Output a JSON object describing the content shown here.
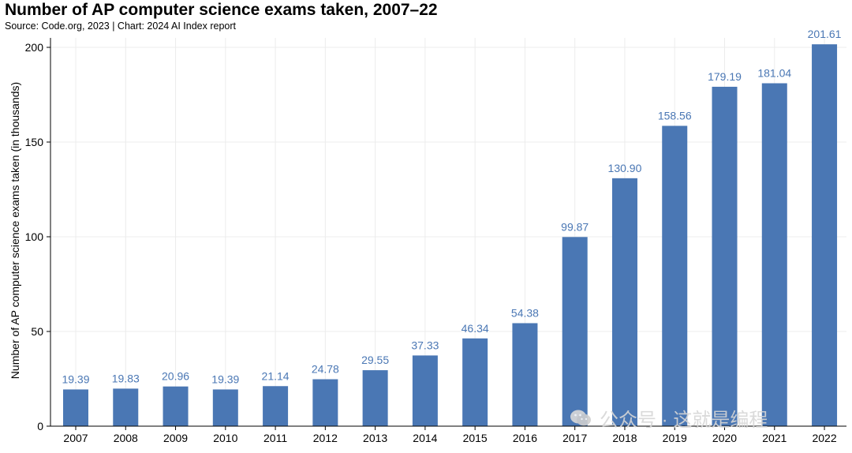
{
  "chart_data": {
    "type": "bar",
    "title": "Number of AP computer science exams taken, 2007–22",
    "subtitle": "Source: Code.org, 2023 | Chart: 2024 AI Index report",
    "xlabel": "",
    "ylabel": "Number of AP computer science exams taken (in thousands)",
    "categories": [
      "2007",
      "2008",
      "2009",
      "2010",
      "2011",
      "2012",
      "2013",
      "2014",
      "2015",
      "2016",
      "2017",
      "2018",
      "2019",
      "2020",
      "2021",
      "2022"
    ],
    "values": [
      19.39,
      19.83,
      20.96,
      19.39,
      21.14,
      24.78,
      29.55,
      37.33,
      46.34,
      54.38,
      99.87,
      130.9,
      158.56,
      179.19,
      181.04,
      201.61
    ],
    "value_labels": [
      "19.39",
      "19.83",
      "20.96",
      "19.39",
      "21.14",
      "24.78",
      "29.55",
      "37.33",
      "46.34",
      "54.38",
      "99.87",
      "130.90",
      "158.56",
      "179.19",
      "181.04",
      "201.61"
    ],
    "ylim": [
      0,
      205
    ],
    "yticks": [
      0,
      50,
      100,
      150,
      200
    ],
    "grid": true,
    "legend": "none"
  },
  "colors": {
    "bar": "#4a77b4",
    "value_label": "#4a77b4",
    "grid": "#ececec",
    "axis": "#000000",
    "watermark": "#d6d6d6"
  },
  "watermark": {
    "icon": "wechat-icon",
    "text": "公众号 · 这就是编程"
  }
}
